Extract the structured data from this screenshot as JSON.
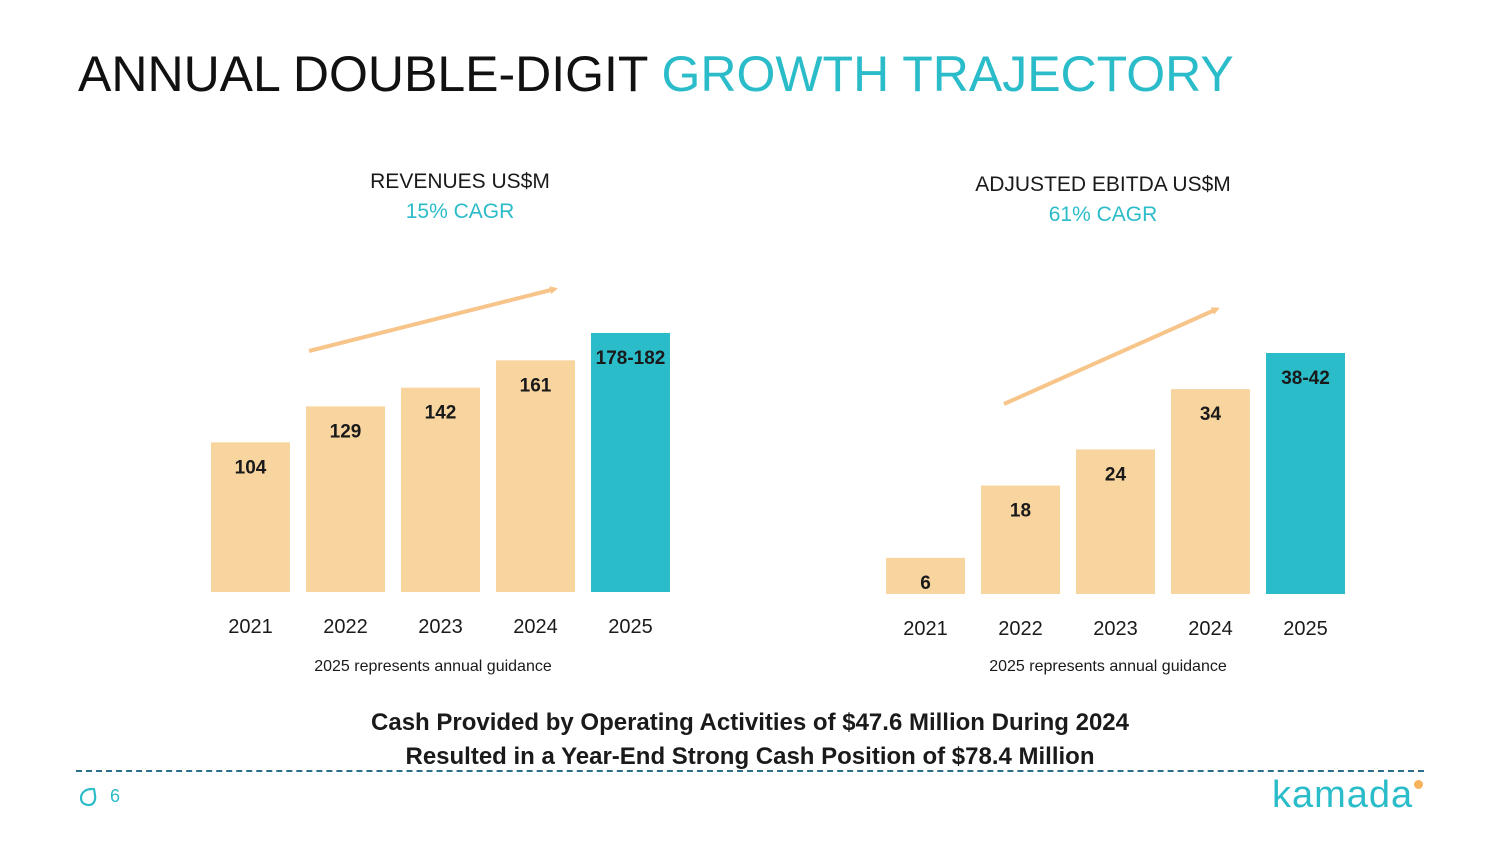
{
  "title": {
    "main": "ANNUAL DOUBLE-DIGIT",
    "accent": "GROWTH TRAJECTORY"
  },
  "colors": {
    "accent": "#2bbcc9",
    "bar": "#f8d49f",
    "arrow": "#f7c58a",
    "highlight_bar": "#2bbcc9"
  },
  "chart_data": [
    {
      "type": "bar",
      "title": "REVENUES US$M",
      "subtitle": "15% CAGR",
      "categories": [
        "2021",
        "2022",
        "2023",
        "2024",
        "2025"
      ],
      "values": [
        104,
        129,
        142,
        161,
        180
      ],
      "labels": [
        "104",
        "129",
        "142",
        "161",
        "178-182"
      ],
      "highlight_index": 4,
      "note": "2025 represents annual guidance"
    },
    {
      "type": "bar",
      "title": "ADJUSTED EBITDA US$M",
      "subtitle": "61% CAGR",
      "categories": [
        "2021",
        "2022",
        "2023",
        "2024",
        "2025"
      ],
      "values": [
        6,
        18,
        24,
        34,
        40
      ],
      "labels": [
        "6",
        "18",
        "24",
        "34",
        "38-42"
      ],
      "highlight_index": 4,
      "note": "2025 represents annual guidance"
    }
  ],
  "footer": {
    "line1": "Cash Provided by Operating Activities of $47.6 Million During 2024",
    "line2": "Resulted in a Year-End Strong Cash Position of $78.4 Million"
  },
  "page_number": "6",
  "brand": "kamada",
  "icons": {
    "logo": "kamada-mark-icon",
    "arrow": "trend-arrow-icon"
  }
}
